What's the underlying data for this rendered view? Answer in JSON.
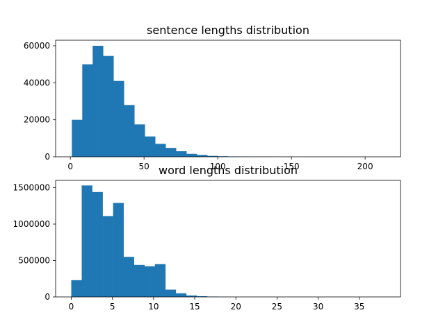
{
  "chart_data": [
    {
      "type": "bar",
      "title": "sentence lengths distribution",
      "xlim": [
        -10,
        224
      ],
      "ylim": [
        0,
        63000
      ],
      "x_ticks": [
        0,
        50,
        100,
        150,
        200
      ],
      "x_tick_labels": [
        "0",
        "50",
        "100",
        "150",
        "200"
      ],
      "y_ticks": [
        0,
        20000,
        40000,
        60000
      ],
      "y_tick_labels": [
        "0",
        "20000",
        "40000",
        "60000"
      ],
      "bar_color": "#1f77b4",
      "bin_start": 1,
      "bin_width": 7.07,
      "values": [
        20000,
        50000,
        60000,
        54500,
        41000,
        28000,
        17500,
        11000,
        7000,
        4800,
        3000,
        1600,
        1000,
        500,
        300,
        200,
        150,
        100,
        80,
        60,
        40,
        30,
        20,
        15,
        10,
        8,
        5,
        3,
        2,
        1
      ]
    },
    {
      "type": "bar",
      "title": "word lengths distribution",
      "xlim": [
        -1.9,
        40
      ],
      "ylim": [
        0,
        1600000
      ],
      "x_ticks": [
        0,
        5,
        10,
        15,
        20,
        25,
        30,
        35
      ],
      "x_tick_labels": [
        "0",
        "5",
        "10",
        "15",
        "20",
        "25",
        "30",
        "35"
      ],
      "y_ticks": [
        0,
        500000,
        1000000,
        1500000
      ],
      "y_tick_labels": [
        "0",
        "500000",
        "1000000",
        "1500000"
      ],
      "bar_color": "#1f77b4",
      "bin_start": 0,
      "bin_width": 1.27,
      "values": [
        230000,
        1530000,
        1440000,
        1110000,
        1290000,
        550000,
        440000,
        420000,
        450000,
        100000,
        50000,
        20000,
        10000,
        5000,
        2000,
        1000,
        500,
        200,
        100,
        50,
        20,
        10,
        5,
        3,
        2,
        1,
        1,
        1,
        1,
        1
      ]
    }
  ]
}
